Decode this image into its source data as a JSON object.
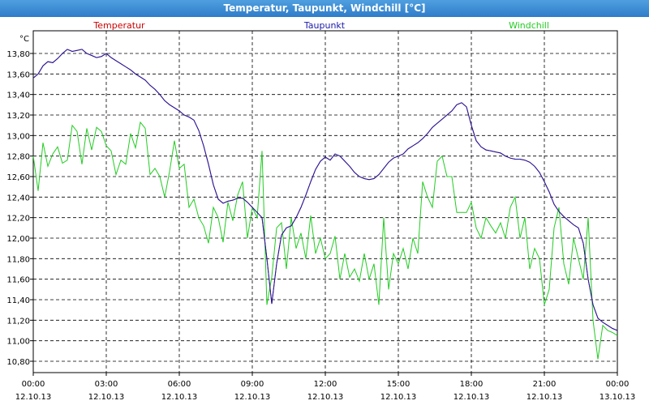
{
  "window": {
    "title": "Temperatur, Taupunkt, Windchill [°C]"
  },
  "chart_data": {
    "type": "line",
    "title": "Temperatur, Taupunkt, Windchill [°C]",
    "ylabel": "°C",
    "ylim": [
      10.7,
      13.95
    ],
    "xlim": [
      0,
      24
    ],
    "grid": true,
    "legend_position": "top",
    "y_ticks": [
      "13,80",
      "13,60",
      "13,40",
      "13,20",
      "13,00",
      "12,80",
      "12,60",
      "12,40",
      "12,20",
      "12,00",
      "11,80",
      "11,60",
      "11,40",
      "11,20",
      "11,00",
      "10,80"
    ],
    "x_ticks": [
      {
        "time": "00:00",
        "date": "12.10.13"
      },
      {
        "time": "03:00",
        "date": "12.10.13"
      },
      {
        "time": "06:00",
        "date": "12.10.13"
      },
      {
        "time": "09:00",
        "date": "12.10.13"
      },
      {
        "time": "12:00",
        "date": "12.10.13"
      },
      {
        "time": "15:00",
        "date": "12.10.13"
      },
      {
        "time": "18:00",
        "date": "12.10.13"
      },
      {
        "time": "21:00",
        "date": "12.10.13"
      },
      {
        "time": "00:00",
        "date": "13.10.13"
      }
    ],
    "series": [
      {
        "name": "Temperatur",
        "color": "#cc0000",
        "x": [
          0,
          0.2,
          0.4,
          0.6,
          0.8,
          1.0,
          1.2,
          1.4,
          1.6,
          1.8,
          2.0,
          2.2,
          2.4,
          2.6,
          2.8,
          3.0,
          3.2,
          3.4,
          3.6,
          3.8,
          4.0,
          4.2,
          4.4,
          4.6,
          4.8,
          5.0,
          5.2,
          5.4,
          5.6,
          5.8,
          6.0,
          6.2,
          6.4,
          6.6,
          6.8,
          7.0,
          7.2,
          7.4,
          7.6,
          7.8,
          8.0,
          8.2,
          8.4,
          8.6,
          8.8,
          9.0,
          9.2,
          9.4,
          9.6,
          9.8,
          10.0,
          10.2,
          10.4,
          10.6,
          10.8,
          11.0,
          11.2,
          11.4,
          11.6,
          11.8,
          12.0,
          12.2,
          12.4,
          12.6,
          12.8,
          13.0,
          13.2,
          13.4,
          13.6,
          13.8,
          14.0,
          14.2,
          14.4,
          14.6,
          14.8,
          15.0,
          15.2,
          15.4,
          15.6,
          15.8,
          16.0,
          16.2,
          16.4,
          16.6,
          16.8,
          17.0,
          17.2,
          17.4,
          17.6,
          17.8,
          18.0,
          18.2,
          18.4,
          18.6,
          18.8,
          19.0,
          19.2,
          19.4,
          19.6,
          19.8,
          20.0,
          20.2,
          20.4,
          20.6,
          20.8,
          21.0,
          21.2,
          21.4,
          21.6,
          21.8,
          22.0,
          22.2,
          22.4,
          22.6,
          22.8,
          23.0,
          23.2,
          23.4,
          23.6,
          23.8
        ],
        "values": [
          13.56,
          13.6,
          13.68,
          13.72,
          13.71,
          13.75,
          13.8,
          13.84,
          13.82,
          13.83,
          13.84,
          13.8,
          13.78,
          13.76,
          13.77,
          13.8,
          13.76,
          13.73,
          13.7,
          13.67,
          13.64,
          13.6,
          13.57,
          13.54,
          13.49,
          13.45,
          13.4,
          13.34,
          13.3,
          13.27,
          13.24,
          13.2,
          13.18,
          13.15,
          13.05,
          12.9,
          12.72,
          12.52,
          12.38,
          12.34,
          12.36,
          12.37,
          12.39,
          12.39,
          12.35,
          12.3,
          12.25,
          12.2,
          11.8,
          11.36,
          11.75,
          12.03,
          12.1,
          12.12,
          12.2,
          12.3,
          12.42,
          12.55,
          12.67,
          12.75,
          12.79,
          12.76,
          12.82,
          12.8,
          12.75,
          12.7,
          12.64,
          12.6,
          12.58,
          12.57,
          12.58,
          12.62,
          12.68,
          12.74,
          12.78,
          12.8,
          12.82,
          12.87,
          12.9,
          12.93,
          12.97,
          13.02,
          13.08,
          13.12,
          13.16,
          13.2,
          13.24,
          13.3,
          13.32,
          13.28,
          13.1,
          12.95,
          12.89,
          12.86,
          12.85,
          12.84,
          12.83,
          12.8,
          12.78,
          12.77,
          12.77,
          12.76,
          12.74,
          12.7,
          12.64,
          12.55,
          12.45,
          12.33,
          12.26,
          12.21,
          12.17,
          12.13,
          12.1,
          11.95,
          11.6,
          11.35,
          11.22,
          11.18,
          11.15,
          11.12
        ],
        "values_end": [
          11.1
        ]
      },
      {
        "name": "Taupunkt",
        "color": "#1a1aaa",
        "x": [
          0,
          0.2,
          0.4,
          0.6,
          0.8,
          1.0,
          1.2,
          1.4,
          1.6,
          1.8,
          2.0,
          2.2,
          2.4,
          2.6,
          2.8,
          3.0,
          3.2,
          3.4,
          3.6,
          3.8,
          4.0,
          4.2,
          4.4,
          4.6,
          4.8,
          5.0,
          5.2,
          5.4,
          5.6,
          5.8,
          6.0,
          6.2,
          6.4,
          6.6,
          6.8,
          7.0,
          7.2,
          7.4,
          7.6,
          7.8,
          8.0,
          8.2,
          8.4,
          8.6,
          8.8,
          9.0,
          9.2,
          9.4,
          9.6,
          9.8,
          10.0,
          10.2,
          10.4,
          10.6,
          10.8,
          11.0,
          11.2,
          11.4,
          11.6,
          11.8,
          12.0,
          12.2,
          12.4,
          12.6,
          12.8,
          13.0,
          13.2,
          13.4,
          13.6,
          13.8,
          14.0,
          14.2,
          14.4,
          14.6,
          14.8,
          15.0,
          15.2,
          15.4,
          15.6,
          15.8,
          16.0,
          16.2,
          16.4,
          16.6,
          16.8,
          17.0,
          17.2,
          17.4,
          17.6,
          17.8,
          18.0,
          18.2,
          18.4,
          18.6,
          18.8,
          19.0,
          19.2,
          19.4,
          19.6,
          19.8,
          20.0,
          20.2,
          20.4,
          20.6,
          20.8,
          21.0,
          21.2,
          21.4,
          21.6,
          21.8,
          22.0,
          22.2,
          22.4,
          22.6,
          22.8,
          23.0,
          23.2,
          23.4,
          23.6,
          23.8
        ],
        "values": [
          13.56,
          13.6,
          13.68,
          13.72,
          13.71,
          13.75,
          13.8,
          13.84,
          13.82,
          13.83,
          13.84,
          13.8,
          13.78,
          13.76,
          13.77,
          13.8,
          13.76,
          13.73,
          13.7,
          13.67,
          13.64,
          13.6,
          13.57,
          13.54,
          13.49,
          13.45,
          13.4,
          13.34,
          13.3,
          13.27,
          13.24,
          13.2,
          13.18,
          13.15,
          13.05,
          12.9,
          12.72,
          12.52,
          12.38,
          12.34,
          12.36,
          12.37,
          12.39,
          12.39,
          12.35,
          12.3,
          12.25,
          12.2,
          11.8,
          11.36,
          11.75,
          12.03,
          12.1,
          12.12,
          12.2,
          12.3,
          12.42,
          12.55,
          12.67,
          12.75,
          12.79,
          12.76,
          12.82,
          12.8,
          12.75,
          12.7,
          12.64,
          12.6,
          12.58,
          12.57,
          12.58,
          12.62,
          12.68,
          12.74,
          12.78,
          12.8,
          12.82,
          12.87,
          12.9,
          12.93,
          12.97,
          13.02,
          13.08,
          13.12,
          13.16,
          13.2,
          13.24,
          13.3,
          13.32,
          13.28,
          13.1,
          12.95,
          12.89,
          12.86,
          12.85,
          12.84,
          12.83,
          12.8,
          12.78,
          12.77,
          12.77,
          12.76,
          12.74,
          12.7,
          12.64,
          12.55,
          12.45,
          12.33,
          12.26,
          12.21,
          12.17,
          12.13,
          12.1,
          11.95,
          11.6,
          11.35,
          11.22,
          11.18,
          11.15,
          11.12
        ],
        "values_end": [
          11.1
        ]
      },
      {
        "name": "Windchill",
        "color": "#22cc22",
        "x": [
          0,
          0.2,
          0.4,
          0.6,
          0.8,
          1.0,
          1.2,
          1.4,
          1.6,
          1.8,
          2.0,
          2.2,
          2.4,
          2.6,
          2.8,
          3.0,
          3.2,
          3.4,
          3.6,
          3.8,
          4.0,
          4.2,
          4.4,
          4.6,
          4.8,
          5.0,
          5.2,
          5.4,
          5.6,
          5.8,
          6.0,
          6.2,
          6.4,
          6.6,
          6.8,
          7.0,
          7.2,
          7.4,
          7.6,
          7.8,
          8.0,
          8.2,
          8.4,
          8.6,
          8.8,
          9.0,
          9.2,
          9.4,
          9.6,
          9.8,
          10.0,
          10.2,
          10.4,
          10.6,
          10.8,
          11.0,
          11.2,
          11.4,
          11.6,
          11.8,
          12.0,
          12.2,
          12.4,
          12.6,
          12.8,
          13.0,
          13.2,
          13.4,
          13.6,
          13.8,
          14.0,
          14.2,
          14.4,
          14.6,
          14.8,
          15.0,
          15.2,
          15.4,
          15.6,
          15.8,
          16.0,
          16.2,
          16.4,
          16.6,
          16.8,
          17.0,
          17.2,
          17.4,
          17.6,
          17.8,
          18.0,
          18.2,
          18.4,
          18.6,
          18.8,
          19.0,
          19.2,
          19.4,
          19.6,
          19.8,
          20.0,
          20.2,
          20.4,
          20.6,
          20.8,
          21.0,
          21.2,
          21.4,
          21.6,
          21.8,
          22.0,
          22.2,
          22.4,
          22.6,
          22.8,
          23.0,
          23.2,
          23.4,
          23.6,
          23.8,
          24.0
        ],
        "values": [
          12.8,
          12.46,
          12.93,
          12.7,
          12.82,
          12.89,
          12.73,
          12.76,
          13.1,
          13.04,
          12.72,
          13.07,
          12.86,
          13.08,
          13.04,
          12.9,
          12.85,
          12.62,
          12.76,
          12.72,
          13.02,
          12.88,
          13.13,
          13.07,
          12.62,
          12.68,
          12.6,
          12.4,
          12.65,
          12.95,
          12.68,
          12.72,
          12.3,
          12.38,
          12.2,
          12.12,
          11.95,
          12.3,
          12.2,
          11.96,
          12.35,
          12.17,
          12.42,
          12.55,
          12.0,
          12.3,
          12.2,
          12.85,
          11.35,
          11.62,
          12.1,
          12.15,
          11.7,
          12.2,
          11.9,
          12.05,
          11.8,
          12.22,
          11.85,
          12.0,
          11.8,
          11.85,
          12.02,
          11.6,
          11.85,
          11.62,
          11.7,
          11.58,
          11.85,
          11.6,
          11.75,
          11.35,
          12.2,
          11.5,
          11.85,
          11.75,
          11.9,
          11.7,
          12.0,
          11.85,
          12.55,
          12.4,
          12.3,
          12.75,
          12.8,
          12.6,
          12.6,
          12.25,
          12.25,
          12.25,
          12.35,
          12.1,
          12.0,
          12.2,
          12.12,
          12.05,
          12.15,
          12.0,
          12.3,
          12.4,
          12.0,
          12.2,
          11.7,
          11.9,
          11.8,
          11.35,
          11.5,
          12.1,
          12.3,
          11.75,
          11.55,
          12.0,
          11.8,
          11.6,
          12.2,
          11.2,
          10.82,
          11.15,
          11.1,
          11.08,
          11.05
        ],
        "values_end": []
      }
    ]
  }
}
